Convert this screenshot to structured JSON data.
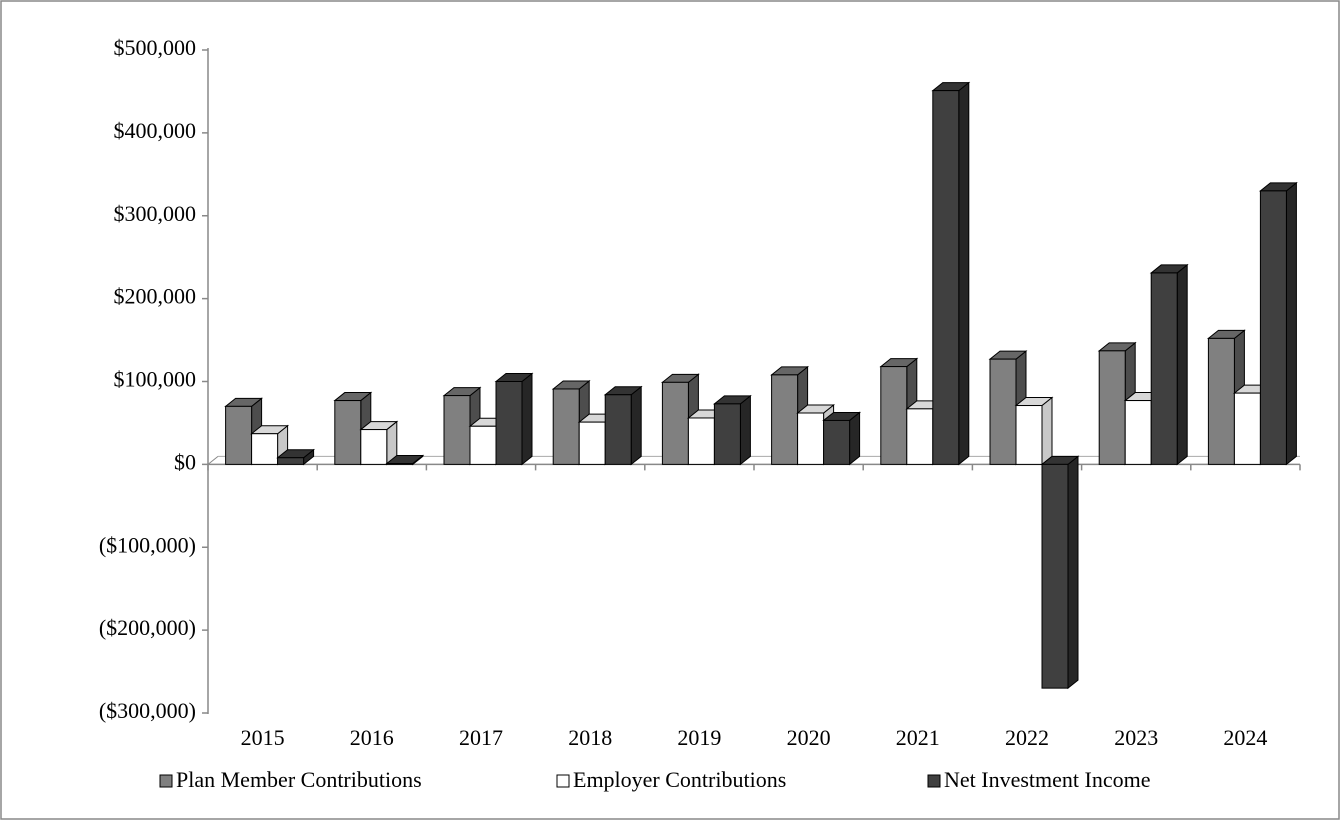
{
  "chart_data": {
    "type": "bar3d",
    "categories": [
      "2015",
      "2016",
      "2017",
      "2018",
      "2019",
      "2020",
      "2021",
      "2022",
      "2023",
      "2024"
    ],
    "series": [
      {
        "name": "Plan Member Contributions",
        "color": "#808080",
        "values": [
          70000,
          77000,
          83000,
          91000,
          99000,
          108000,
          118000,
          127000,
          137000,
          152000
        ]
      },
      {
        "name": "Employer Contributions",
        "color": "#ffffff",
        "values": [
          37000,
          42000,
          46000,
          51000,
          56000,
          62000,
          67000,
          71000,
          77000,
          86000
        ]
      },
      {
        "name": "Net Investment Income",
        "color": "#404040",
        "values": [
          8000,
          1000,
          100000,
          84000,
          73000,
          53000,
          451000,
          -270000,
          231000,
          330000
        ]
      }
    ],
    "ylim": [
      -300000,
      500000
    ],
    "yticks": [
      {
        "value": -300000,
        "label": "($300,000)"
      },
      {
        "value": -200000,
        "label": "($200,000)"
      },
      {
        "value": -100000,
        "label": "($100,000)"
      },
      {
        "value": 0,
        "label": "$0"
      },
      {
        "value": 100000,
        "label": "$100,000"
      },
      {
        "value": 200000,
        "label": "$200,000"
      },
      {
        "value": 300000,
        "label": "$300,000"
      },
      {
        "value": 400000,
        "label": "$400,000"
      },
      {
        "value": 500000,
        "label": "$500,000"
      }
    ],
    "legend_position": "bottom"
  }
}
